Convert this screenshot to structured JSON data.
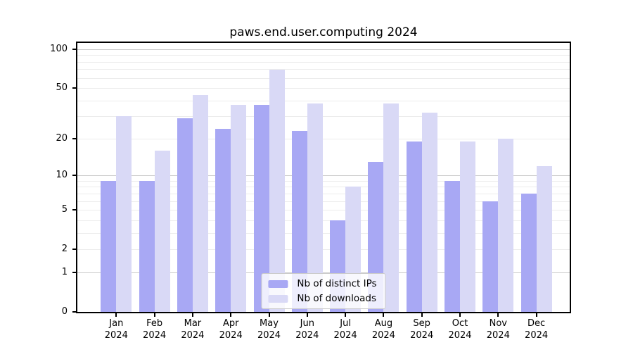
{
  "colors": {
    "bar_ips": "#a8a8f4",
    "bar_downloads": "#d9d9f6",
    "grid_minor": "#ececec",
    "grid_major": "#c9c9c9",
    "axis": "#000000",
    "background": "#ffffff"
  },
  "chart_data": {
    "type": "bar",
    "title": "paws.end.user.computing 2024",
    "categories": [
      "Jan 2024",
      "Feb 2024",
      "Mar 2024",
      "Apr 2024",
      "May 2024",
      "Jun 2024",
      "Jul 2024",
      "Aug 2024",
      "Sep 2024",
      "Oct 2024",
      "Nov 2024",
      "Dec 2024"
    ],
    "series": [
      {
        "name": "Nb of distinct IPs",
        "values": [
          9,
          9,
          29,
          24,
          37,
          23,
          4,
          13,
          19,
          9,
          6,
          7
        ]
      },
      {
        "name": "Nb of downloads",
        "values": [
          30,
          16,
          44,
          37,
          70,
          38,
          8,
          38,
          32,
          19,
          20,
          12
        ]
      }
    ],
    "xlabel": "",
    "ylabel": "",
    "grid": true,
    "legend_position": "inside bottom center",
    "y_axis": {
      "scale": "log1p",
      "ylim": [
        0,
        112
      ],
      "ticks": [
        100,
        50,
        20,
        10,
        5,
        2,
        1,
        0
      ],
      "major_gridlines": [
        1,
        10,
        100
      ],
      "minor_gridlines": [
        2,
        3,
        4,
        5,
        6,
        7,
        8,
        9,
        20,
        30,
        40,
        50,
        60,
        70,
        80,
        90
      ]
    }
  }
}
